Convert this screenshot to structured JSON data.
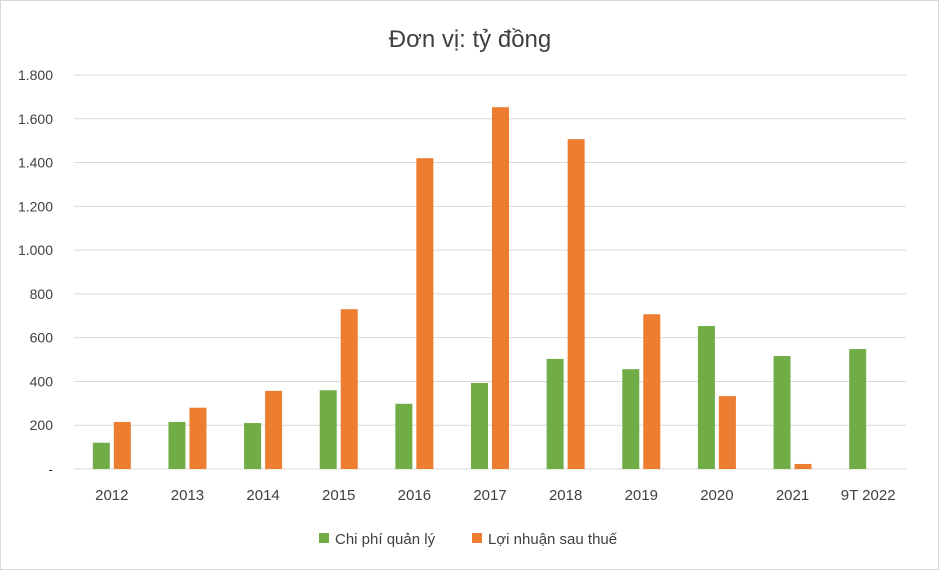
{
  "chart_data": {
    "type": "bar",
    "title": "Đơn vị: tỷ đồng",
    "categories": [
      "2012",
      "2013",
      "2014",
      "2015",
      "2016",
      "2017",
      "2018",
      "2019",
      "2020",
      "2021",
      "9T 2022"
    ],
    "series": [
      {
        "name": "Chi phí quản lý",
        "color": "#70ad47",
        "values": [
          120,
          215,
          210,
          360,
          298,
          393,
          503,
          456,
          653,
          516,
          548
        ]
      },
      {
        "name": "Lợi nhuận sau thuế",
        "color": "#ed7d31",
        "values": [
          215,
          280,
          357,
          730,
          1420,
          1653,
          1507,
          707,
          333,
          23,
          null
        ]
      }
    ],
    "ylim": [
      0,
      1800
    ],
    "yticks": [
      {
        "value": 0,
        "label": "-"
      },
      {
        "value": 200,
        "label": "200"
      },
      {
        "value": 400,
        "label": "400"
      },
      {
        "value": 600,
        "label": "600"
      },
      {
        "value": 800,
        "label": "800"
      },
      {
        "value": 1000,
        "label": "1.000"
      },
      {
        "value": 1200,
        "label": "1.200"
      },
      {
        "value": 1400,
        "label": "1.400"
      },
      {
        "value": 1600,
        "label": "1.600"
      },
      {
        "value": 1800,
        "label": "1.800"
      }
    ],
    "grid": true,
    "legend": "bottom"
  }
}
